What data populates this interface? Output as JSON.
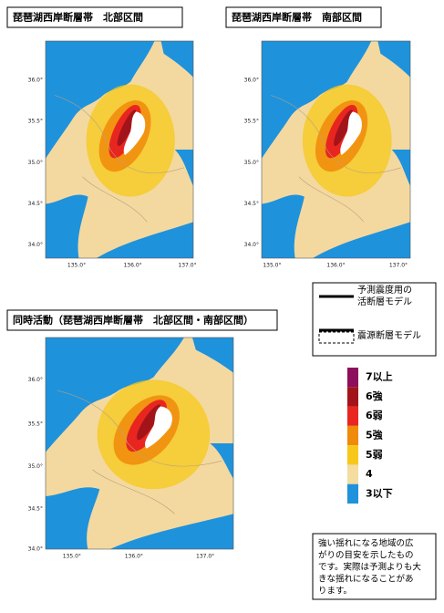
{
  "panels": [
    {
      "title": "琵琶湖西岸断層帯　北部区間",
      "lat_labels": [
        "36.0°",
        "35.5°",
        "35.0°",
        "34.5°",
        "34.0°"
      ],
      "lon_labels": [
        "135.0°",
        "136.0°",
        "137.0°"
      ]
    },
    {
      "title": "琵琶湖西岸断層帯　南部区間",
      "lat_labels": [
        "36.0°",
        "35.5°",
        "35.0°",
        "34.5°",
        "34.0°"
      ],
      "lon_labels": [
        "135.0°",
        "136.0°",
        "137.0°"
      ]
    },
    {
      "title": "同時活動（琵琶湖西岸断層帯　北部区間・南部区間）",
      "lat_labels": [
        "36.0°",
        "35.5°",
        "35.0°",
        "34.5°",
        "34.0°"
      ],
      "lon_labels": [
        "135.0°",
        "136.0°",
        "137.0°"
      ]
    }
  ],
  "model_legend": {
    "solid": [
      "予測震度用の",
      "活断層モデル"
    ],
    "dashed": "震源断層モデル"
  },
  "intensity_legend": [
    {
      "label": "7以上",
      "color": "#8e0e5e"
    },
    {
      "label": "6強",
      "color": "#a3141a"
    },
    {
      "label": "6弱",
      "color": "#e8261f"
    },
    {
      "label": "5強",
      "color": "#f08a0a"
    },
    {
      "label": "5弱",
      "color": "#f7c81a"
    },
    {
      "label": "4",
      "color": "#f5dca0"
    },
    {
      "label": "3以下",
      "color": "#1f92dc"
    }
  ],
  "note": [
    "強い揺れになる地域の広",
    "がりの目安を示したもの",
    "です。実際は予測よりも大",
    "きな揺れになることがあ",
    "ります。"
  ]
}
